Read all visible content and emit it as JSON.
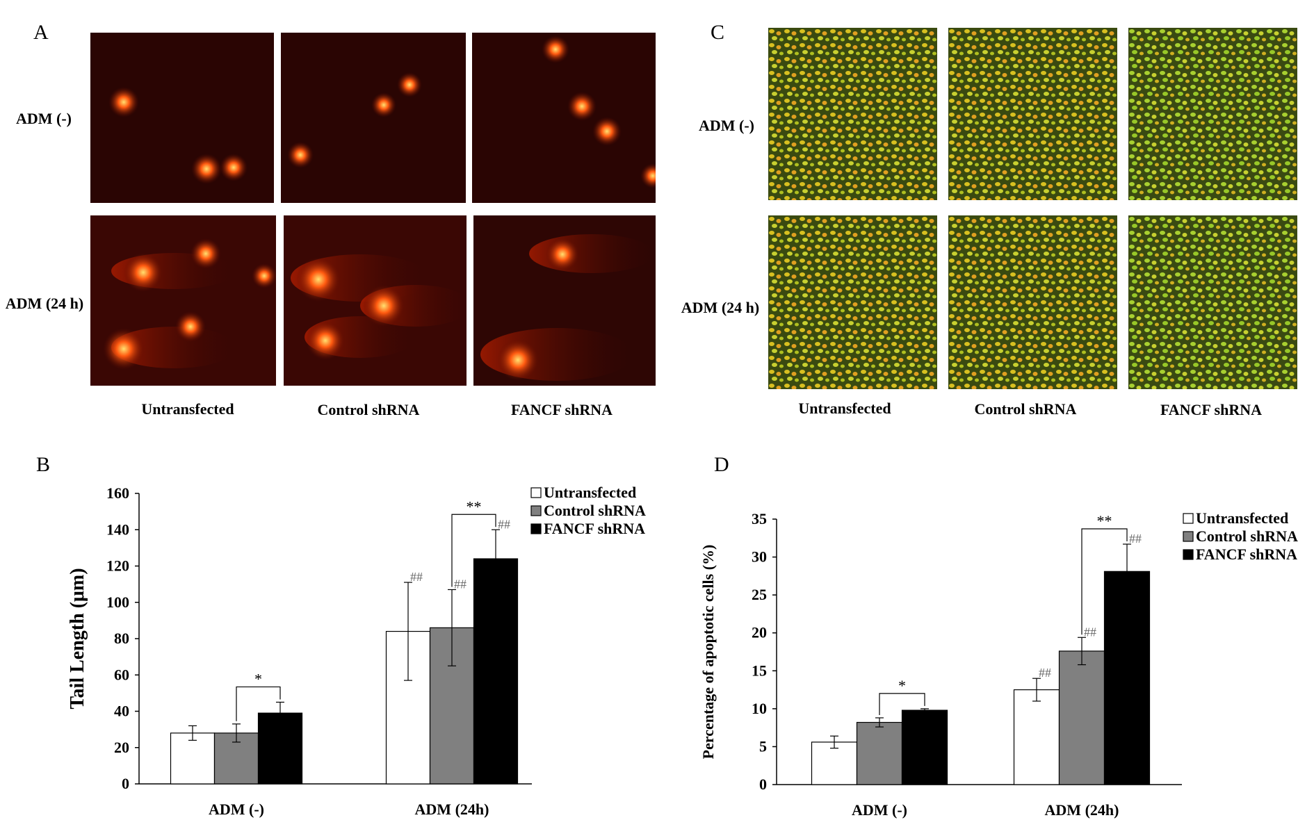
{
  "panels": {
    "A": {
      "letter": "A",
      "row_labels": [
        "ADM (-)",
        "ADM (24 h)"
      ],
      "col_labels": [
        "Untransfected",
        "Control shRNA",
        "FANCF shRNA"
      ],
      "image_desc": "comet-assay-fluorescence"
    },
    "C": {
      "letter": "C",
      "row_labels": [
        "ADM (-)",
        "ADM (24 h)"
      ],
      "col_labels": [
        "Untransfected",
        "Control shRNA",
        "FANCF shRNA"
      ],
      "image_desc": "AO-EB-stained-cells-fluorescence"
    },
    "B": {
      "letter": "B"
    },
    "D": {
      "letter": "D"
    }
  },
  "chart_data": [
    {
      "id": "B",
      "type": "bar",
      "ylabel": "Tail Length (μm)",
      "xlabel": "",
      "ylim": [
        0,
        160
      ],
      "yticks": [
        0,
        20,
        40,
        60,
        80,
        100,
        120,
        140,
        160
      ],
      "categories": [
        "ADM (-)",
        "ADM (24h)"
      ],
      "legend_position": "top-right",
      "series": [
        {
          "name": "Untransfected",
          "color": "#ffffff",
          "values": [
            28,
            84
          ],
          "errors": [
            4,
            27
          ]
        },
        {
          "name": "Control shRNA",
          "color": "#808080",
          "values": [
            28,
            86
          ],
          "errors": [
            5,
            21
          ]
        },
        {
          "name": "FANCF shRNA",
          "color": "#000000",
          "values": [
            39,
            124
          ],
          "errors": [
            6,
            16
          ]
        }
      ],
      "hash_marks": {
        "text": "##",
        "category": 1,
        "series": [
          0,
          1,
          2
        ]
      },
      "significance": [
        {
          "text": "*",
          "category": 0,
          "between_series": [
            1,
            2
          ]
        },
        {
          "text": "**",
          "category": 1,
          "between_series": [
            1,
            2
          ]
        }
      ]
    },
    {
      "id": "D",
      "type": "bar",
      "ylabel": "Percentage of apoptotic cells (%)",
      "xlabel": "",
      "ylim": [
        0,
        35
      ],
      "yticks": [
        0,
        5,
        10,
        15,
        20,
        25,
        30,
        35
      ],
      "categories": [
        "ADM (-)",
        "ADM (24h)"
      ],
      "legend_position": "top-right",
      "series": [
        {
          "name": "Untransfected",
          "color": "#ffffff",
          "values": [
            5.6,
            12.5
          ],
          "errors": [
            0.8,
            1.5
          ]
        },
        {
          "name": "Control shRNA",
          "color": "#808080",
          "values": [
            8.2,
            17.6
          ],
          "errors": [
            0.6,
            1.8
          ]
        },
        {
          "name": "FANCF shRNA",
          "color": "#000000",
          "values": [
            9.8,
            28.1
          ],
          "errors": [
            0.2,
            3.6
          ]
        }
      ],
      "hash_marks": {
        "text": "##",
        "category": 1,
        "series": [
          0,
          1,
          2
        ]
      },
      "significance": [
        {
          "text": "*",
          "category": 0,
          "between_series": [
            1,
            2
          ]
        },
        {
          "text": "**",
          "category": 1,
          "between_series": [
            1,
            2
          ]
        }
      ]
    }
  ]
}
